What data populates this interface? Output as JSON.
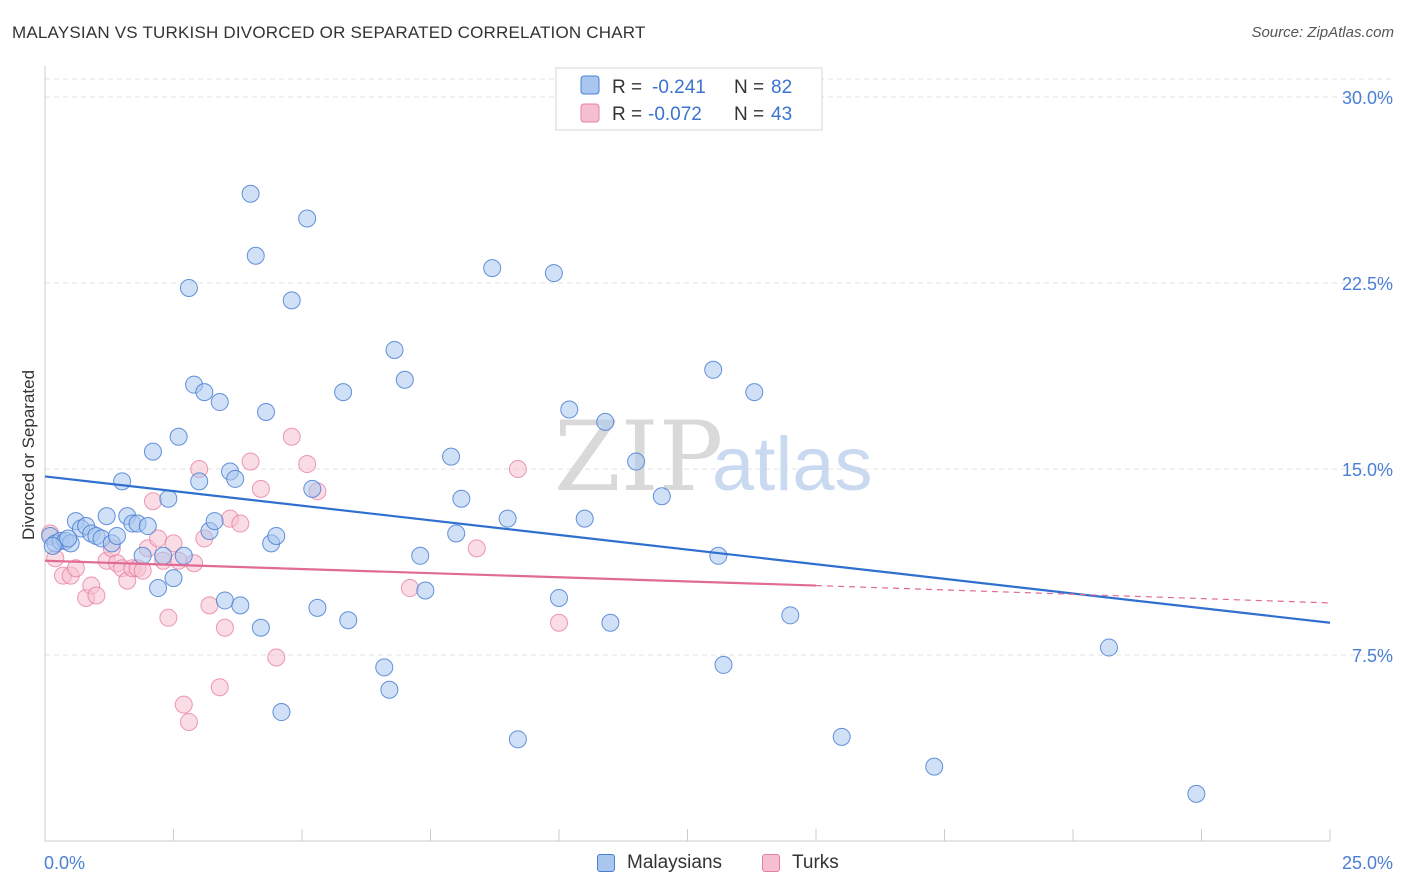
{
  "title": "MALAYSIAN VS TURKISH DIVORCED OR SEPARATED CORRELATION CHART",
  "source": "Source: ZipAtlas.com",
  "colors": {
    "blue": "#4a7fd4",
    "blue_fill": "#a9c7ee",
    "blue_line": "#2f6fd0",
    "pink": "#e87fa2",
    "pink_fill": "#f6bfd0",
    "pink_line": "#e06b94"
  },
  "legend_top": {
    "rows": [
      {
        "r_label": "R = ",
        "r_value": "-0.241",
        "n_label": "N = ",
        "n_value": "82"
      },
      {
        "r_label": "R = ",
        "r_value": "-0.072",
        "n_label": "N = ",
        "n_value": "43"
      }
    ]
  },
  "legend_bottom": [
    "Malaysians",
    "Turks"
  ],
  "watermark": {
    "part1": "ZIP",
    "part2": "atlas"
  },
  "chart_data": {
    "type": "scatter",
    "xlabel": "",
    "ylabel": "Divorced or Separated",
    "xlim": [
      0,
      25
    ],
    "ylim": [
      0,
      31
    ],
    "x_tick_labels": [
      "0.0%",
      "25.0%"
    ],
    "y_ticks": [
      7.5,
      15.0,
      22.5,
      30.0
    ],
    "y_tick_labels": [
      "7.5%",
      "15.0%",
      "22.5%",
      "30.0%"
    ],
    "grid": true,
    "series": [
      {
        "name": "Malaysians",
        "r": -0.241,
        "n": 82,
        "trend": {
          "x0": 0,
          "y0": 14.7,
          "x1": 25,
          "y1": 8.8
        },
        "points": [
          [
            0.1,
            12.3
          ],
          [
            0.2,
            12.0
          ],
          [
            0.3,
            12.1
          ],
          [
            0.4,
            12.1
          ],
          [
            0.5,
            12.0
          ],
          [
            0.6,
            12.9
          ],
          [
            0.7,
            12.6
          ],
          [
            0.8,
            12.7
          ],
          [
            0.9,
            12.4
          ],
          [
            1.0,
            12.3
          ],
          [
            1.1,
            12.2
          ],
          [
            1.2,
            13.1
          ],
          [
            1.3,
            12.0
          ],
          [
            1.4,
            12.3
          ],
          [
            1.5,
            14.5
          ],
          [
            1.6,
            13.1
          ],
          [
            1.7,
            12.8
          ],
          [
            1.8,
            12.8
          ],
          [
            1.9,
            11.5
          ],
          [
            2.0,
            12.7
          ],
          [
            2.1,
            15.7
          ],
          [
            2.2,
            10.2
          ],
          [
            2.3,
            11.5
          ],
          [
            2.4,
            13.8
          ],
          [
            2.5,
            10.6
          ],
          [
            2.6,
            16.3
          ],
          [
            2.7,
            11.5
          ],
          [
            2.8,
            22.3
          ],
          [
            2.9,
            18.4
          ],
          [
            3.0,
            14.5
          ],
          [
            3.1,
            18.1
          ],
          [
            3.2,
            12.5
          ],
          [
            3.3,
            12.9
          ],
          [
            3.4,
            17.7
          ],
          [
            3.5,
            9.7
          ],
          [
            3.6,
            14.9
          ],
          [
            3.7,
            14.6
          ],
          [
            3.8,
            9.5
          ],
          [
            4.0,
            26.1
          ],
          [
            4.1,
            23.6
          ],
          [
            4.2,
            8.6
          ],
          [
            4.3,
            17.3
          ],
          [
            4.4,
            12.0
          ],
          [
            4.5,
            12.3
          ],
          [
            4.6,
            5.2
          ],
          [
            4.8,
            21.8
          ],
          [
            5.1,
            25.1
          ],
          [
            5.2,
            14.2
          ],
          [
            5.3,
            9.4
          ],
          [
            5.8,
            18.1
          ],
          [
            5.9,
            8.9
          ],
          [
            6.6,
            7.0
          ],
          [
            6.7,
            6.1
          ],
          [
            6.8,
            19.8
          ],
          [
            7.0,
            18.6
          ],
          [
            7.3,
            11.5
          ],
          [
            7.4,
            10.1
          ],
          [
            7.9,
            15.5
          ],
          [
            8.0,
            12.4
          ],
          [
            8.1,
            13.8
          ],
          [
            8.7,
            23.1
          ],
          [
            9.0,
            13.0
          ],
          [
            9.2,
            4.1
          ],
          [
            9.9,
            22.9
          ],
          [
            10.0,
            9.8
          ],
          [
            10.2,
            17.4
          ],
          [
            10.5,
            13.0
          ],
          [
            10.9,
            16.9
          ],
          [
            11.0,
            8.8
          ],
          [
            11.5,
            15.3
          ],
          [
            12.0,
            13.9
          ],
          [
            13.0,
            19.0
          ],
          [
            13.1,
            11.5
          ],
          [
            13.2,
            7.1
          ],
          [
            13.8,
            18.1
          ],
          [
            14.5,
            9.1
          ],
          [
            15.5,
            4.2
          ],
          [
            17.3,
            3.0
          ],
          [
            20.7,
            7.8
          ],
          [
            22.4,
            1.9
          ],
          [
            0.15,
            11.9
          ],
          [
            0.45,
            12.2
          ]
        ]
      },
      {
        "name": "Turks",
        "r": -0.072,
        "n": 43,
        "trend": {
          "x0": 0,
          "y0": 11.3,
          "x1": 15,
          "y1": 10.3,
          "dash_x1": 25,
          "dash_y1": 9.6
        },
        "points": [
          [
            0.1,
            12.4
          ],
          [
            0.2,
            11.4
          ],
          [
            0.35,
            10.7
          ],
          [
            0.5,
            10.7
          ],
          [
            0.6,
            11.0
          ],
          [
            0.8,
            9.8
          ],
          [
            0.9,
            10.3
          ],
          [
            1.0,
            9.9
          ],
          [
            1.2,
            11.3
          ],
          [
            1.3,
            11.8
          ],
          [
            1.4,
            11.2
          ],
          [
            1.5,
            11.0
          ],
          [
            1.6,
            10.5
          ],
          [
            1.7,
            11.0
          ],
          [
            1.8,
            11.0
          ],
          [
            1.9,
            10.9
          ],
          [
            2.0,
            11.8
          ],
          [
            2.1,
            13.7
          ],
          [
            2.2,
            12.2
          ],
          [
            2.3,
            11.3
          ],
          [
            2.4,
            9.0
          ],
          [
            2.5,
            12.0
          ],
          [
            2.6,
            11.3
          ],
          [
            2.7,
            5.5
          ],
          [
            2.8,
            4.8
          ],
          [
            2.9,
            11.2
          ],
          [
            3.0,
            15.0
          ],
          [
            3.1,
            12.2
          ],
          [
            3.2,
            9.5
          ],
          [
            3.4,
            6.2
          ],
          [
            3.5,
            8.6
          ],
          [
            3.6,
            13.0
          ],
          [
            3.8,
            12.8
          ],
          [
            4.0,
            15.3
          ],
          [
            4.2,
            14.2
          ],
          [
            4.5,
            7.4
          ],
          [
            4.8,
            16.3
          ],
          [
            5.1,
            15.2
          ],
          [
            5.3,
            14.1
          ],
          [
            7.1,
            10.2
          ],
          [
            8.4,
            11.8
          ],
          [
            9.2,
            15.0
          ],
          [
            10.0,
            8.8
          ]
        ]
      }
    ]
  }
}
